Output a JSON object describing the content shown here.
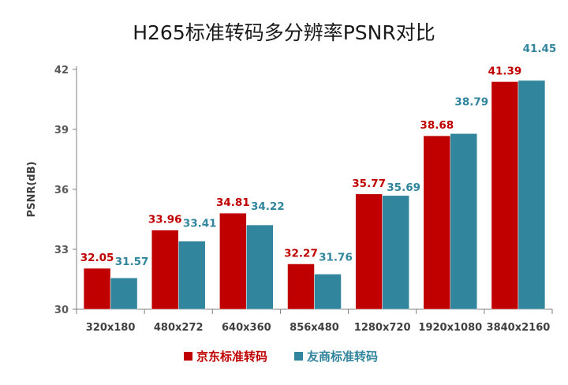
{
  "colors": {
    "series_1": "#C00000",
    "series_2": "#31859C",
    "axis": "#7F7F7F",
    "grid": "#D9D9D9"
  },
  "chart_data": {
    "type": "bar",
    "title": "H265标准转码多分辨率PSNR对比",
    "xlabel": "",
    "ylabel": "PSNR(dB)",
    "ylim": [
      30,
      42
    ],
    "yticks": [
      "30",
      "33",
      "36",
      "39",
      "42"
    ],
    "grid": false,
    "legend_position": "bottom",
    "categories": [
      "320x180",
      "480x272",
      "640x360",
      "856x480",
      "1280x720",
      "1920x1080",
      "3840x2160"
    ],
    "series": [
      {
        "name": "京东标准转码",
        "color": "#C00000",
        "values": [
          32.05,
          33.96,
          34.81,
          32.27,
          35.77,
          38.68,
          41.39
        ],
        "labels": [
          "32.05",
          "33.96",
          "34.81",
          "32.27",
          "35.77",
          "38.68",
          "41.39"
        ]
      },
      {
        "name": "友商标准转码",
        "color": "#31859C",
        "values": [
          31.57,
          33.41,
          34.22,
          31.76,
          35.69,
          38.79,
          41.45
        ],
        "labels": [
          "31.57",
          "33.41",
          "34.22",
          "31.76",
          "35.69",
          "38.79",
          "41.45"
        ]
      }
    ]
  }
}
